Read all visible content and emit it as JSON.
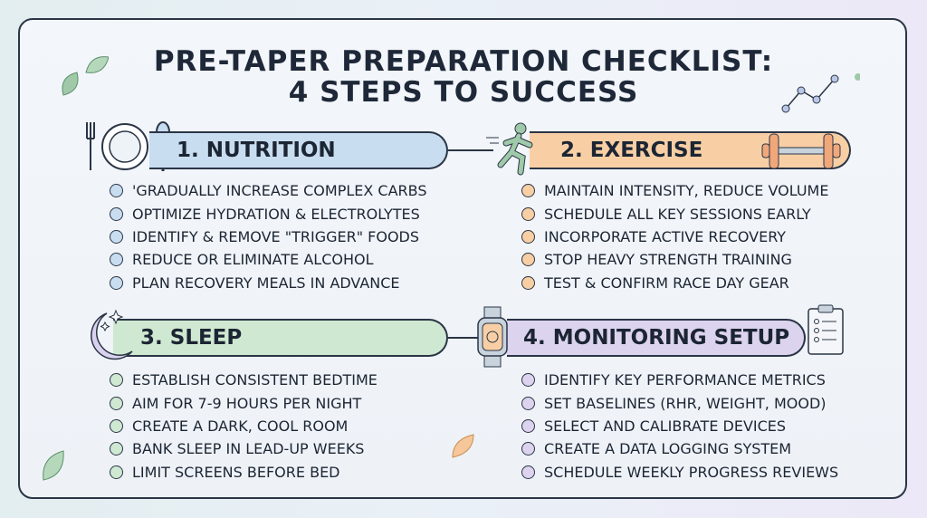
{
  "title": {
    "line1": "PRE-TAPER PREPARATION CHECKLIST:",
    "line2": "4 STEPS TO SUCCESS"
  },
  "colors": {
    "nutrition": "#c9ddf0",
    "exercise": "#f8cfa5",
    "sleep": "#cfe8d1",
    "monitoring": "#dcd3ee"
  },
  "sections": [
    {
      "heading": "1. NUTRITION",
      "icon": "fork-plate-spoon-icon",
      "items": [
        "'GRADUALLY INCREASE COMPLEX CARBS",
        "OPTIMIZE HYDRATION & ELECTROLYTES",
        "IDENTIFY & REMOVE \"TRIGGER\" FOODS",
        "REDUCE OR ELIMINATE ALCOHOL",
        "PLAN RECOVERY MEALS IN ADVANCE"
      ]
    },
    {
      "heading": "2. EXERCISE",
      "icon": "runner-dumbbell-icon",
      "items": [
        "MAINTAIN INTENSITY, REDUCE VOLUME",
        "SCHEDULE ALL KEY SESSIONS EARLY",
        "INCORPORATE ACTIVE RECOVERY",
        "STOP HEAVY STRENGTH TRAINING",
        "TEST & CONFIRM RACE DAY GEAR"
      ]
    },
    {
      "heading": "3. SLEEP",
      "icon": "moon-stars-icon",
      "items": [
        "ESTABLISH CONSISTENT BEDTIME",
        "AIM FOR 7-9 HOURS PER NIGHT",
        "CREATE A DARK, COOL ROOM",
        "BANK SLEEP IN LEAD-UP WEEKS",
        "LIMIT SCREENS BEFORE BED"
      ]
    },
    {
      "heading": "4. MONITORING SETUP",
      "icon": "watch-clipboard-icon",
      "items": [
        "IDENTIFY KEY PERFORMANCE METRICS",
        "SET BASELINES (RHR, WEIGHT, MOOD)",
        "SELECT AND CALIBRATE DEVICES",
        "CREATE A DATA LOGGING SYSTEM",
        "SCHEDULE WEEKLY PROGRESS REVIEWS"
      ]
    }
  ]
}
